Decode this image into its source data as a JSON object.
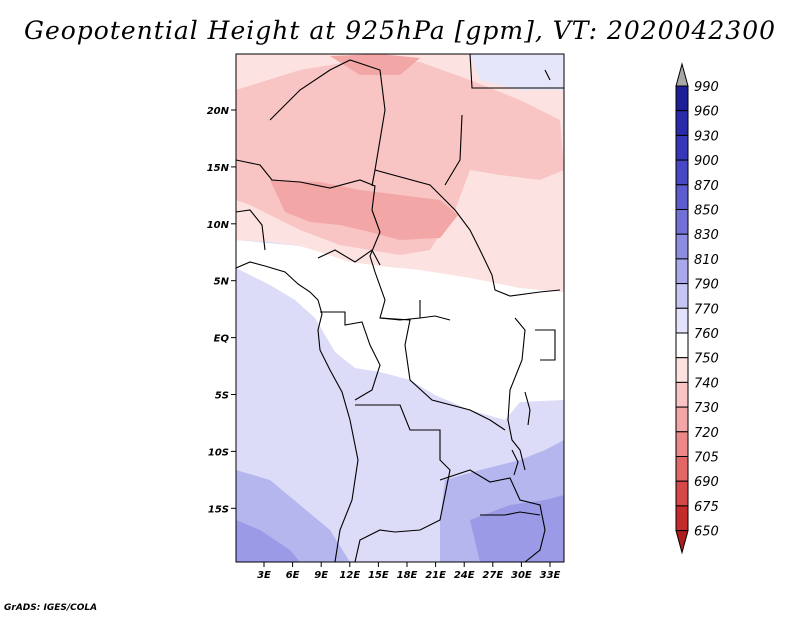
{
  "title": "Geopotential Height at 925hPa [gpm], VT: 2020042300",
  "credit": "GrADS: IGES/COLA",
  "map": {
    "lat_labels": [
      "20N",
      "15N",
      "10N",
      "5N",
      "EQ",
      "5S",
      "10S",
      "15S"
    ],
    "lon_labels": [
      "3E",
      "6E",
      "9E",
      "12E",
      "15E",
      "18E",
      "21E",
      "24E",
      "27E",
      "30E",
      "33E"
    ]
  },
  "colorbar": {
    "levels": [
      "990",
      "960",
      "930",
      "900",
      "870",
      "850",
      "830",
      "810",
      "790",
      "770",
      "760",
      "750",
      "740",
      "730",
      "720",
      "705",
      "690",
      "675",
      "650"
    ],
    "colors": [
      "#a8a8a8",
      "#1e1e96",
      "#2a2aaa",
      "#3636b8",
      "#4848c4",
      "#5c5ccc",
      "#7272d6",
      "#8c8ce0",
      "#a8a8ea",
      "#c6c6f2",
      "#e2e2fa",
      "#ffffff",
      "#fde2e2",
      "#f8c4c4",
      "#f3a6a6",
      "#ec8888",
      "#e26868",
      "#d44848",
      "#c42c2c",
      "#ae1c1c"
    ]
  }
}
